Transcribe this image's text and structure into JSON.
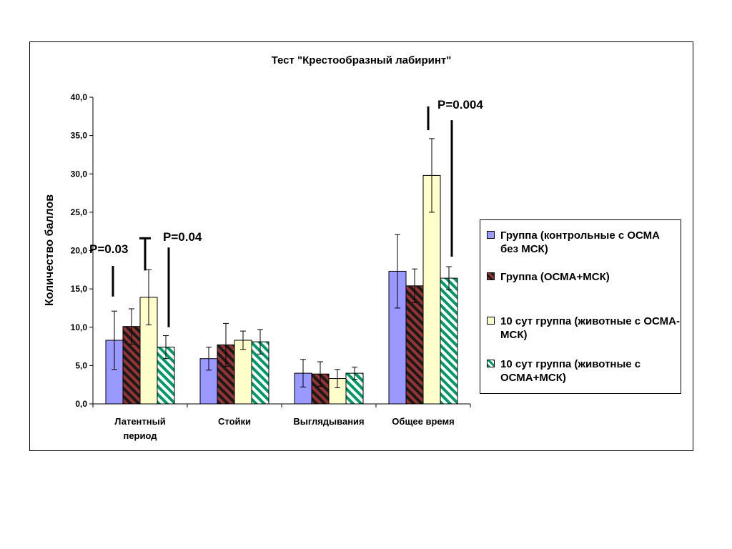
{
  "chart_data": {
    "type": "bar",
    "title": "Тест \"Крестообразный лабиринт\"",
    "ylabel": "Количество баллов",
    "ylim": [
      0,
      40
    ],
    "ytick_step": 5,
    "ytick_labels": [
      "0,0",
      "5,0",
      "10,0",
      "15,0",
      "20,0",
      "25,0",
      "30,0",
      "35,0",
      "40,0"
    ],
    "categories": [
      "Латентный\nпериод",
      "Стойки",
      "Выглядывания",
      "Общее время"
    ],
    "series": [
      {
        "name": "Группа  (контрольные с ОСМА без МСК)",
        "color": "#9999ff",
        "pattern": "solid",
        "values": [
          8.3,
          5.9,
          4.0,
          17.3
        ],
        "errors": [
          3.8,
          1.5,
          1.8,
          4.8
        ]
      },
      {
        "name": "Группа  (ОСМА+МСК)",
        "color": "#993333",
        "pattern": "diagonal-stripes",
        "values": [
          10.1,
          7.7,
          3.9,
          15.4
        ],
        "errors": [
          2.3,
          2.8,
          1.6,
          2.2
        ]
      },
      {
        "name": "10 сут группа  (животные с ОСМА-МСК)",
        "color": "#ffffcc",
        "pattern": "solid",
        "values": [
          13.9,
          8.3,
          3.3,
          29.8
        ],
        "errors": [
          3.6,
          1.2,
          1.2,
          4.8
        ]
      },
      {
        "name": "10 сут группа (животные с ОСМА+МСК)",
        "color": "#009966",
        "pattern": "diagonal-stripes",
        "values": [
          7.4,
          8.1,
          4.0,
          16.4
        ],
        "errors": [
          1.5,
          1.6,
          0.8,
          1.5
        ]
      }
    ],
    "legend_position": "right",
    "grid": false,
    "annotations": [
      "P=0.03",
      "P=0.04",
      "P=0.004"
    ]
  }
}
